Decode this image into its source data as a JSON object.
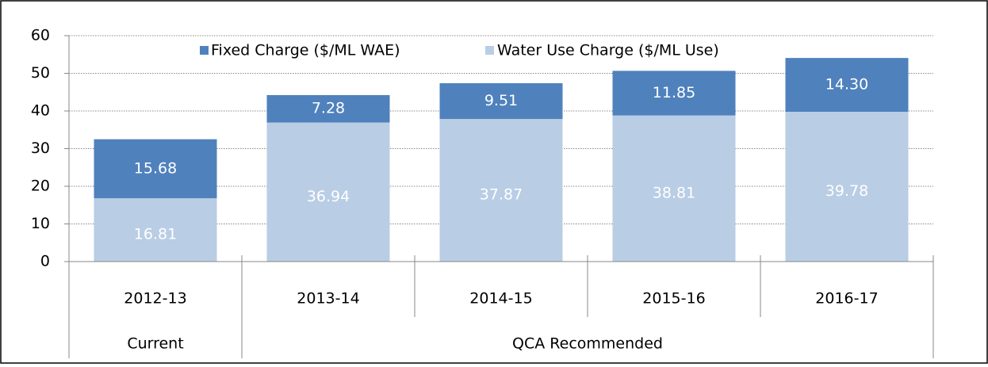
{
  "chart_data": {
    "type": "stacked_bar",
    "categories": [
      "2012-13",
      "2013-14",
      "2014-15",
      "2015-16",
      "2016-17"
    ],
    "category_groups": [
      "Current",
      "QCA Recommended",
      "QCA Recommended",
      "QCA Recommended",
      "QCA Recommended"
    ],
    "series": [
      {
        "name": "Fixed Charge ($/ML WAE)",
        "color": "#4f81bd",
        "values": [
          15.68,
          7.28,
          9.51,
          11.85,
          14.3
        ],
        "value_labels": [
          "15.68",
          "7.28",
          "9.51",
          "11.85",
          "14.30"
        ]
      },
      {
        "name": "Water Use Charge ($/ML Use)",
        "color": "#b9cde5",
        "values": [
          16.81,
          36.94,
          37.87,
          38.81,
          39.78
        ]
      }
    ],
    "ylim": [
      0,
      60
    ],
    "yticks": [
      0,
      10,
      20,
      30,
      40,
      50,
      60
    ],
    "grid": true,
    "legend": "top"
  }
}
